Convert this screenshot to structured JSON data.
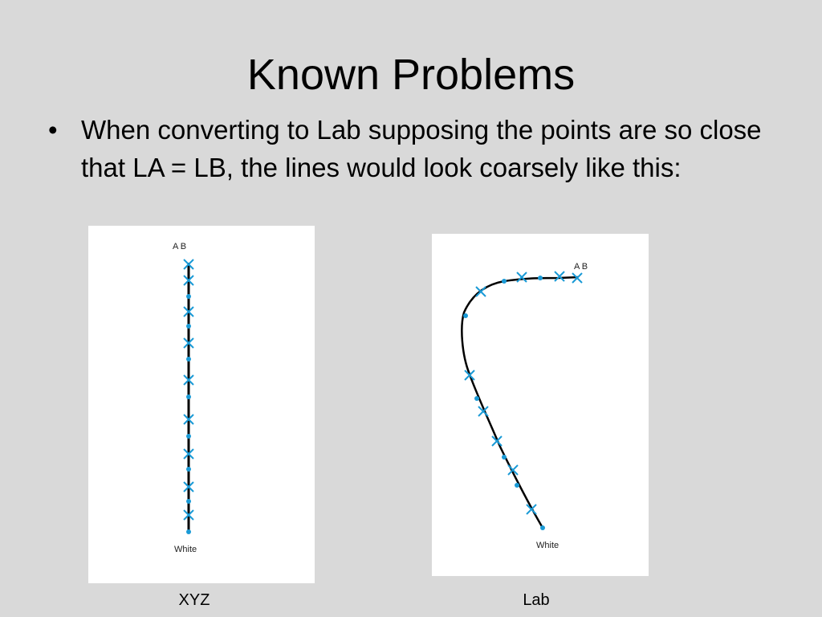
{
  "slide": {
    "title": "Known Problems",
    "bullet_glyph": "•",
    "bullet_text": "When converting to Lab supposing the points are so close that LA = LB, the lines would look coarsely like this:"
  },
  "figures": [
    {
      "id": "xyz",
      "caption": "XYZ",
      "top_label": "A B",
      "bottom_label": "White",
      "line_color": "#000000",
      "marker_color": "#1a9ad6"
    },
    {
      "id": "lab",
      "caption": "Lab",
      "top_label": "A B",
      "bottom_label": "White",
      "line_color": "#000000",
      "marker_color": "#1a9ad6"
    }
  ]
}
